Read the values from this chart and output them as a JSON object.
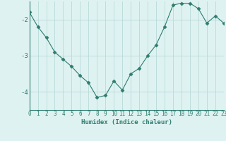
{
  "x": [
    0,
    1,
    2,
    3,
    4,
    5,
    6,
    7,
    8,
    9,
    10,
    11,
    12,
    13,
    14,
    15,
    16,
    17,
    18,
    19,
    20,
    21,
    22,
    23
  ],
  "y": [
    -1.8,
    -2.2,
    -2.5,
    -2.9,
    -3.1,
    -3.3,
    -3.55,
    -3.75,
    -4.15,
    -4.1,
    -3.7,
    -3.95,
    -3.5,
    -3.35,
    -3.0,
    -2.7,
    -2.2,
    -1.6,
    -1.55,
    -1.55,
    -1.7,
    -2.1,
    -1.9,
    -2.1
  ],
  "xlabel": "Humidex (Indice chaleur)",
  "xlim": [
    0,
    23
  ],
  "ylim": [
    -4.5,
    -1.5
  ],
  "yticks": [
    -4,
    -3,
    -2
  ],
  "xticks": [
    0,
    1,
    2,
    3,
    4,
    5,
    6,
    7,
    8,
    9,
    10,
    11,
    12,
    13,
    14,
    15,
    16,
    17,
    18,
    19,
    20,
    21,
    22,
    23
  ],
  "line_color": "#2e7d6e",
  "marker": "D",
  "marker_size": 2.5,
  "bg_color": "#dff2f2",
  "grid_color": "#b8dada",
  "label_color": "#2e7d6e",
  "tick_color": "#2e7d6e",
  "font_family": "monospace",
  "tick_fontsize": 5.5,
  "xlabel_fontsize": 6.5
}
